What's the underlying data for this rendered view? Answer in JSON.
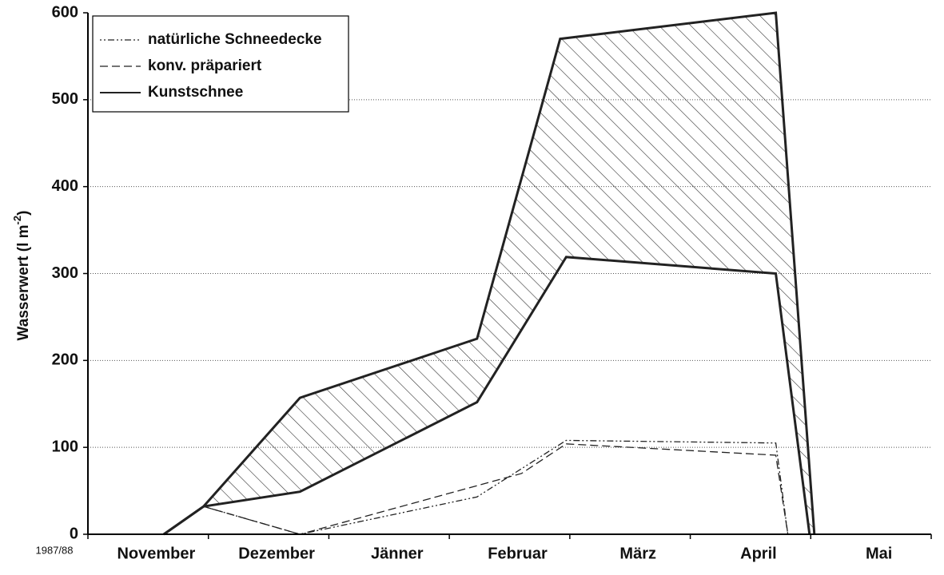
{
  "chart_data": {
    "type": "line",
    "y_label": {
      "text": "Wasserwert (l m",
      "sup": "-2",
      "end": ")"
    },
    "season": "1987/88",
    "categories": [
      "November",
      "Dezember",
      "Jänner",
      "Februar",
      "März",
      "April",
      "Mai"
    ],
    "xlim": [
      0,
      7
    ],
    "ylim": [
      0,
      600
    ],
    "yticks": [
      0,
      100,
      200,
      300,
      400,
      500,
      600
    ],
    "grid": true,
    "legend": "upper left",
    "series": [
      {
        "name": "natürliche Schneedecke",
        "color": "#222",
        "style": "dashdot",
        "x": [
          0.96,
          1.76,
          3.23,
          3.97,
          5.71,
          5.81
        ],
        "values": [
          32,
          0,
          43,
          108,
          105,
          0
        ]
      },
      {
        "name": "konv. präpariert",
        "color": "#222",
        "style": "dashed",
        "x": [
          0.96,
          1.76,
          3.6,
          3.97,
          5.71,
          5.81
        ],
        "values": [
          32,
          0,
          70,
          104,
          91,
          0
        ]
      },
      {
        "name": "Kunstschnee",
        "color": "#222",
        "style": "solid",
        "x": [
          0.63,
          0.96,
          1.76,
          3.23,
          3.92,
          5.71,
          6.03
        ],
        "values": [
          0,
          32,
          157,
          225,
          570,
          600,
          0
        ],
        "lower_x": [
          0.63,
          0.96,
          1.76,
          3.23,
          3.97,
          5.71,
          5.99
        ],
        "lower_values": [
          0,
          32,
          49,
          152,
          319,
          300,
          0
        ]
      }
    ]
  }
}
